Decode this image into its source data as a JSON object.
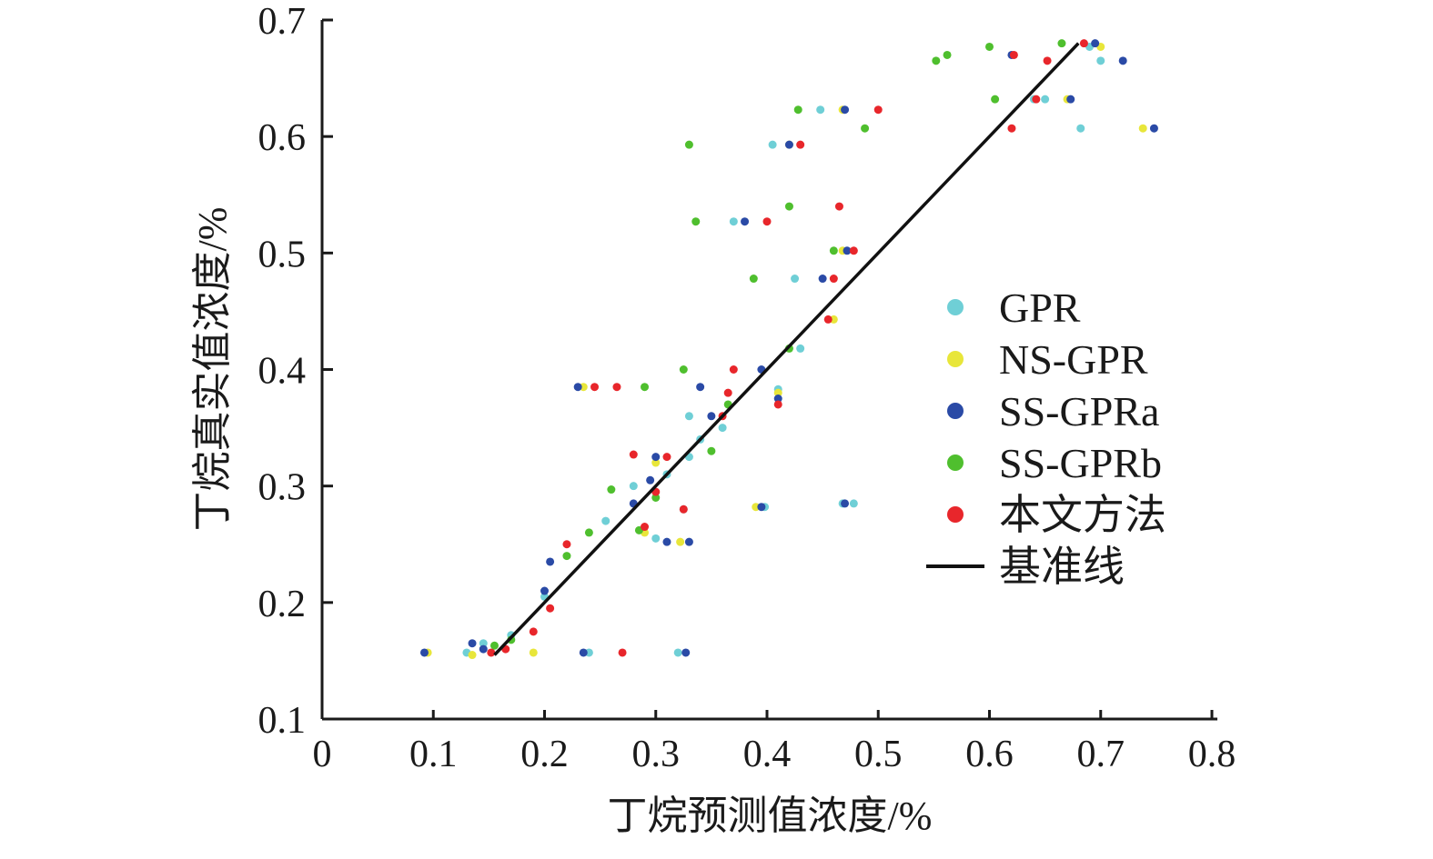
{
  "chart_data": {
    "type": "scatter",
    "title": "",
    "xlabel": "丁烷预测值浓度/%",
    "ylabel": "丁烷真实值浓度/%",
    "xlim": [
      0,
      0.8
    ],
    "ylim": [
      0.1,
      0.7
    ],
    "xticks": [
      0,
      0.1,
      0.2,
      0.3,
      0.4,
      0.5,
      0.6,
      0.7,
      0.8
    ],
    "yticks": [
      0.1,
      0.2,
      0.3,
      0.4,
      0.5,
      0.6,
      0.7
    ],
    "xtick_labels": [
      "0",
      "0.1",
      "0.2",
      "0.3",
      "0.4",
      "0.5",
      "0.6",
      "0.7",
      "0.8"
    ],
    "ytick_labels": [
      "0.1",
      "0.2",
      "0.3",
      "0.4",
      "0.5",
      "0.6",
      "0.7"
    ],
    "grid": false,
    "legend_position": "right",
    "series": [
      {
        "name": "GPR",
        "color": "#6fcfd6",
        "points": [
          [
            0.13,
            0.157
          ],
          [
            0.145,
            0.165
          ],
          [
            0.17,
            0.172
          ],
          [
            0.2,
            0.205
          ],
          [
            0.24,
            0.157
          ],
          [
            0.32,
            0.157
          ],
          [
            0.255,
            0.27
          ],
          [
            0.28,
            0.3
          ],
          [
            0.3,
            0.255
          ],
          [
            0.31,
            0.31
          ],
          [
            0.325,
            0.28
          ],
          [
            0.33,
            0.36
          ],
          [
            0.34,
            0.34
          ],
          [
            0.36,
            0.35
          ],
          [
            0.37,
            0.527
          ],
          [
            0.405,
            0.593
          ],
          [
            0.398,
            0.282
          ],
          [
            0.41,
            0.383
          ],
          [
            0.425,
            0.478
          ],
          [
            0.43,
            0.418
          ],
          [
            0.448,
            0.623
          ],
          [
            0.468,
            0.285
          ],
          [
            0.478,
            0.285
          ],
          [
            0.64,
            0.632
          ],
          [
            0.65,
            0.632
          ],
          [
            0.682,
            0.607
          ],
          [
            0.69,
            0.677
          ],
          [
            0.7,
            0.665
          ],
          [
            0.33,
            0.325
          ]
        ]
      },
      {
        "name": "NS-GPR",
        "color": "#e8e63a",
        "points": [
          [
            0.095,
            0.157
          ],
          [
            0.135,
            0.155
          ],
          [
            0.19,
            0.157
          ],
          [
            0.235,
            0.385
          ],
          [
            0.29,
            0.26
          ],
          [
            0.3,
            0.32
          ],
          [
            0.322,
            0.252
          ],
          [
            0.39,
            0.282
          ],
          [
            0.41,
            0.38
          ],
          [
            0.42,
            0.593
          ],
          [
            0.468,
            0.623
          ],
          [
            0.46,
            0.443
          ],
          [
            0.468,
            0.502
          ],
          [
            0.67,
            0.632
          ],
          [
            0.7,
            0.677
          ],
          [
            0.738,
            0.607
          ]
        ]
      },
      {
        "name": "SS-GPRa",
        "color": "#2a4aa6",
        "points": [
          [
            0.092,
            0.157
          ],
          [
            0.135,
            0.165
          ],
          [
            0.145,
            0.16
          ],
          [
            0.2,
            0.21
          ],
          [
            0.205,
            0.235
          ],
          [
            0.235,
            0.157
          ],
          [
            0.327,
            0.157
          ],
          [
            0.23,
            0.385
          ],
          [
            0.28,
            0.285
          ],
          [
            0.295,
            0.305
          ],
          [
            0.3,
            0.325
          ],
          [
            0.31,
            0.252
          ],
          [
            0.33,
            0.252
          ],
          [
            0.35,
            0.36
          ],
          [
            0.38,
            0.527
          ],
          [
            0.395,
            0.282
          ],
          [
            0.41,
            0.375
          ],
          [
            0.42,
            0.593
          ],
          [
            0.45,
            0.478
          ],
          [
            0.47,
            0.623
          ],
          [
            0.472,
            0.502
          ],
          [
            0.47,
            0.285
          ],
          [
            0.395,
            0.4
          ],
          [
            0.62,
            0.67
          ],
          [
            0.673,
            0.632
          ],
          [
            0.695,
            0.68
          ],
          [
            0.72,
            0.665
          ],
          [
            0.748,
            0.607
          ],
          [
            0.34,
            0.385
          ]
        ]
      },
      {
        "name": "SS-GPRb",
        "color": "#4fbf2e",
        "points": [
          [
            0.155,
            0.163
          ],
          [
            0.17,
            0.168
          ],
          [
            0.22,
            0.24
          ],
          [
            0.26,
            0.297
          ],
          [
            0.285,
            0.262
          ],
          [
            0.29,
            0.385
          ],
          [
            0.33,
            0.593
          ],
          [
            0.336,
            0.527
          ],
          [
            0.35,
            0.33
          ],
          [
            0.365,
            0.37
          ],
          [
            0.388,
            0.478
          ],
          [
            0.42,
            0.418
          ],
          [
            0.428,
            0.623
          ],
          [
            0.42,
            0.54
          ],
          [
            0.46,
            0.502
          ],
          [
            0.488,
            0.607
          ],
          [
            0.552,
            0.665
          ],
          [
            0.562,
            0.67
          ],
          [
            0.6,
            0.677
          ],
          [
            0.605,
            0.632
          ],
          [
            0.665,
            0.68
          ],
          [
            0.325,
            0.4
          ],
          [
            0.3,
            0.29
          ],
          [
            0.24,
            0.26
          ]
        ]
      },
      {
        "name": "本文方法",
        "color": "#e8262b",
        "points": [
          [
            0.152,
            0.157
          ],
          [
            0.165,
            0.16
          ],
          [
            0.19,
            0.175
          ],
          [
            0.205,
            0.195
          ],
          [
            0.22,
            0.25
          ],
          [
            0.245,
            0.385
          ],
          [
            0.265,
            0.385
          ],
          [
            0.27,
            0.157
          ],
          [
            0.29,
            0.265
          ],
          [
            0.3,
            0.295
          ],
          [
            0.31,
            0.325
          ],
          [
            0.325,
            0.28
          ],
          [
            0.36,
            0.36
          ],
          [
            0.365,
            0.38
          ],
          [
            0.37,
            0.4
          ],
          [
            0.4,
            0.527
          ],
          [
            0.43,
            0.593
          ],
          [
            0.455,
            0.443
          ],
          [
            0.46,
            0.478
          ],
          [
            0.465,
            0.54
          ],
          [
            0.478,
            0.502
          ],
          [
            0.5,
            0.623
          ],
          [
            0.622,
            0.67
          ],
          [
            0.62,
            0.607
          ],
          [
            0.642,
            0.632
          ],
          [
            0.652,
            0.665
          ],
          [
            0.685,
            0.68
          ],
          [
            0.41,
            0.37
          ],
          [
            0.28,
            0.327
          ]
        ]
      }
    ],
    "baseline": {
      "name": "基准线",
      "color": "#111111",
      "points": [
        [
          0.155,
          0.155
        ],
        [
          0.68,
          0.68
        ]
      ]
    },
    "legend": [
      {
        "label": "GPR",
        "kind": "dot",
        "color": "#6fcfd6"
      },
      {
        "label": "NS-GPR",
        "kind": "dot",
        "color": "#e8e63a"
      },
      {
        "label": "SS-GPRa",
        "kind": "dot",
        "color": "#2a4aa6"
      },
      {
        "label": "SS-GPRb",
        "kind": "dot",
        "color": "#4fbf2e"
      },
      {
        "label": "本文方法",
        "kind": "dot",
        "color": "#e8262b"
      },
      {
        "label": "基准线",
        "kind": "line",
        "color": "#111111"
      }
    ]
  }
}
